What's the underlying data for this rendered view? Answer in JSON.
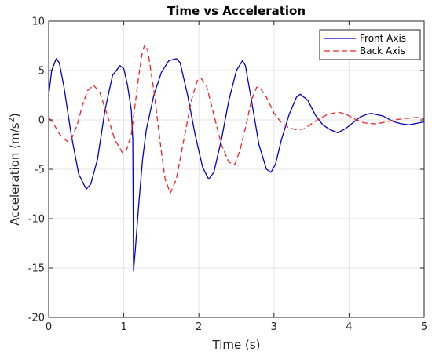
{
  "chart_data": {
    "type": "line",
    "title": "Time vs Acceleration",
    "xlabel": "Time (s)",
    "ylabel_prefix": "Acceleration (m/s",
    "ylabel_sup": "2",
    "ylabel_suffix": ")",
    "xlim": [
      0,
      5
    ],
    "ylim": [
      -20,
      10
    ],
    "xticks": [
      0,
      1,
      2,
      3,
      4,
      5
    ],
    "yticks": [
      -20,
      -15,
      -10,
      -5,
      0,
      5,
      10
    ],
    "grid": true,
    "legend_position": "top-right",
    "series": [
      {
        "name": "Front Axis",
        "color": "#0000cc",
        "dash": "solid",
        "points": [
          [
            0,
            2.5
          ],
          [
            0.04,
            5.0
          ],
          [
            0.1,
            6.2
          ],
          [
            0.14,
            5.8
          ],
          [
            0.2,
            3.5
          ],
          [
            0.3,
            -1.5
          ],
          [
            0.4,
            -5.5
          ],
          [
            0.5,
            -7.0
          ],
          [
            0.56,
            -6.5
          ],
          [
            0.65,
            -4.0
          ],
          [
            0.75,
            1.0
          ],
          [
            0.85,
            4.5
          ],
          [
            0.95,
            5.5
          ],
          [
            1.0,
            5.2
          ],
          [
            1.05,
            3.5
          ],
          [
            1.1,
            1.0
          ],
          [
            1.12,
            -2.0
          ],
          [
            1.13,
            -15.3
          ],
          [
            1.15,
            -13.5
          ],
          [
            1.2,
            -8.5
          ],
          [
            1.25,
            -4.0
          ],
          [
            1.3,
            -1.0
          ],
          [
            1.4,
            2.5
          ],
          [
            1.5,
            4.8
          ],
          [
            1.6,
            6.0
          ],
          [
            1.7,
            6.2
          ],
          [
            1.75,
            5.8
          ],
          [
            1.85,
            2.5
          ],
          [
            1.95,
            -1.5
          ],
          [
            2.05,
            -4.8
          ],
          [
            2.13,
            -6.0
          ],
          [
            2.2,
            -5.3
          ],
          [
            2.3,
            -2.0
          ],
          [
            2.4,
            2.0
          ],
          [
            2.5,
            5.0
          ],
          [
            2.58,
            6.0
          ],
          [
            2.62,
            5.5
          ],
          [
            2.7,
            2.0
          ],
          [
            2.8,
            -2.5
          ],
          [
            2.9,
            -5.0
          ],
          [
            2.96,
            -5.3
          ],
          [
            3.02,
            -4.5
          ],
          [
            3.1,
            -2.0
          ],
          [
            3.2,
            0.5
          ],
          [
            3.3,
            2.3
          ],
          [
            3.35,
            2.6
          ],
          [
            3.45,
            2.0
          ],
          [
            3.55,
            0.5
          ],
          [
            3.65,
            -0.5
          ],
          [
            3.75,
            -1.0
          ],
          [
            3.85,
            -1.3
          ],
          [
            3.95,
            -0.9
          ],
          [
            4.05,
            -0.3
          ],
          [
            4.15,
            0.3
          ],
          [
            4.25,
            0.6
          ],
          [
            4.3,
            0.65
          ],
          [
            4.45,
            0.4
          ],
          [
            4.6,
            -0.2
          ],
          [
            4.7,
            -0.4
          ],
          [
            4.8,
            -0.5
          ],
          [
            4.9,
            -0.35
          ],
          [
            5.0,
            -0.2
          ]
        ]
      },
      {
        "name": "Back Axis",
        "color": "#ee2222",
        "dash": "dashed",
        "points": [
          [
            0,
            0.2
          ],
          [
            0.05,
            -0.2
          ],
          [
            0.15,
            -1.5
          ],
          [
            0.25,
            -2.2
          ],
          [
            0.3,
            -2.0
          ],
          [
            0.38,
            -0.5
          ],
          [
            0.45,
            1.5
          ],
          [
            0.52,
            3.0
          ],
          [
            0.6,
            3.5
          ],
          [
            0.68,
            2.8
          ],
          [
            0.78,
            0.5
          ],
          [
            0.88,
            -2.0
          ],
          [
            0.98,
            -3.3
          ],
          [
            1.03,
            -3.2
          ],
          [
            1.1,
            -1.5
          ],
          [
            1.15,
            1.5
          ],
          [
            1.2,
            4.5
          ],
          [
            1.25,
            7.0
          ],
          [
            1.28,
            7.6
          ],
          [
            1.32,
            7.0
          ],
          [
            1.4,
            3.0
          ],
          [
            1.48,
            -2.0
          ],
          [
            1.55,
            -6.0
          ],
          [
            1.62,
            -7.4
          ],
          [
            1.7,
            -6.0
          ],
          [
            1.8,
            -2.0
          ],
          [
            1.9,
            2.0
          ],
          [
            1.98,
            4.0
          ],
          [
            2.03,
            4.2
          ],
          [
            2.1,
            3.5
          ],
          [
            2.2,
            0.5
          ],
          [
            2.3,
            -2.5
          ],
          [
            2.4,
            -4.3
          ],
          [
            2.48,
            -4.5
          ],
          [
            2.55,
            -3.0
          ],
          [
            2.63,
            -0.5
          ],
          [
            2.7,
            2.0
          ],
          [
            2.77,
            3.3
          ],
          [
            2.8,
            3.4
          ],
          [
            2.9,
            2.3
          ],
          [
            3.0,
            0.7
          ],
          [
            3.1,
            -0.3
          ],
          [
            3.2,
            -0.8
          ],
          [
            3.3,
            -1.0
          ],
          [
            3.4,
            -0.9
          ],
          [
            3.5,
            -0.4
          ],
          [
            3.6,
            0.1
          ],
          [
            3.7,
            0.5
          ],
          [
            3.85,
            0.8
          ],
          [
            3.95,
            0.6
          ],
          [
            4.1,
            0.0
          ],
          [
            4.2,
            -0.3
          ],
          [
            4.35,
            -0.4
          ],
          [
            4.5,
            -0.2
          ],
          [
            4.6,
            0.0
          ],
          [
            4.75,
            0.15
          ],
          [
            4.9,
            0.25
          ],
          [
            5.0,
            0.1
          ]
        ]
      }
    ]
  }
}
